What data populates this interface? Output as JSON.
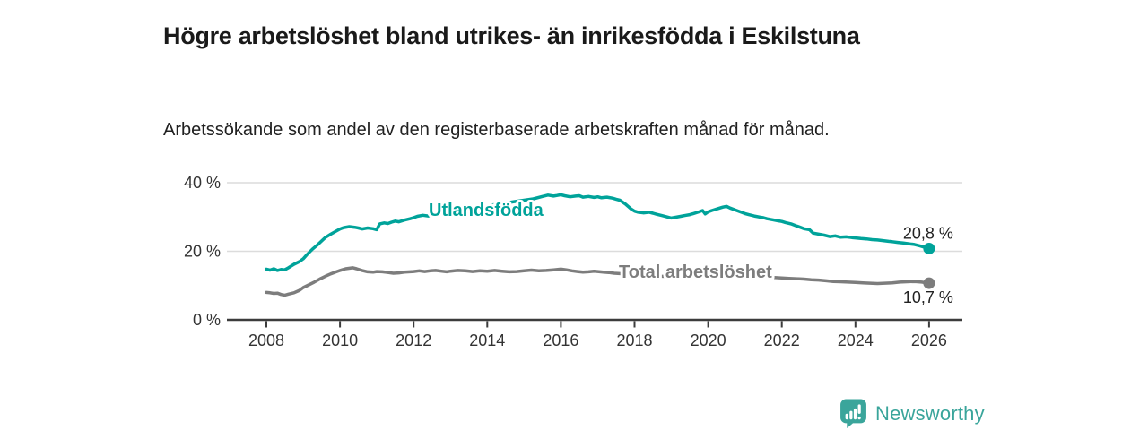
{
  "chart_data": {
    "type": "line",
    "title": "Högre arbetslöshet bland utrikes- än inrikesfödda i Eskilstuna",
    "subtitle": "Arbetssökande som andel av den registerbaserade arbetskraften månad för månad.",
    "unit": "%",
    "x_axis": {
      "range": [
        2008,
        2026
      ],
      "ticks": [
        2008,
        2010,
        2012,
        2014,
        2016,
        2018,
        2020,
        2022,
        2024,
        2026
      ],
      "grid": false
    },
    "y_axis": {
      "range": [
        0,
        40
      ],
      "ticks": [
        0,
        20,
        40
      ],
      "tick_labels": [
        "0 %",
        "20 %",
        "40 %"
      ],
      "grid": true
    },
    "legend_position": "inline-labels-on-lines",
    "series": [
      {
        "name": "Utlandsfödda",
        "color": "#00a39a",
        "end_value": 20.8,
        "end_label": "20,8 %",
        "points": [
          [
            2008.0,
            14.8
          ],
          [
            2008.1,
            14.5
          ],
          [
            2008.2,
            14.9
          ],
          [
            2008.3,
            14.4
          ],
          [
            2008.4,
            14.7
          ],
          [
            2008.5,
            14.6
          ],
          [
            2008.6,
            15.2
          ],
          [
            2008.75,
            16.2
          ],
          [
            2008.9,
            17.0
          ],
          [
            2009.0,
            17.8
          ],
          [
            2009.1,
            19.0
          ],
          [
            2009.25,
            20.6
          ],
          [
            2009.4,
            22.0
          ],
          [
            2009.5,
            23.0
          ],
          [
            2009.6,
            24.0
          ],
          [
            2009.75,
            25.0
          ],
          [
            2009.9,
            25.9
          ],
          [
            2010.0,
            26.5
          ],
          [
            2010.1,
            26.9
          ],
          [
            2010.25,
            27.2
          ],
          [
            2010.4,
            27.0
          ],
          [
            2010.5,
            26.8
          ],
          [
            2010.6,
            26.5
          ],
          [
            2010.75,
            26.8
          ],
          [
            2010.9,
            26.6
          ],
          [
            2011.0,
            26.3
          ],
          [
            2011.08,
            28.0
          ],
          [
            2011.2,
            28.3
          ],
          [
            2011.3,
            28.1
          ],
          [
            2011.4,
            28.5
          ],
          [
            2011.5,
            28.8
          ],
          [
            2011.6,
            28.6
          ],
          [
            2011.75,
            29.1
          ],
          [
            2011.9,
            29.5
          ],
          [
            2012.0,
            29.8
          ],
          [
            2012.1,
            30.2
          ],
          [
            2012.25,
            30.5
          ],
          [
            2012.4,
            30.3
          ],
          [
            2012.5,
            30.7
          ],
          [
            2012.75,
            31.1
          ],
          [
            2013.0,
            31.6
          ],
          [
            2013.25,
            32.1
          ],
          [
            2013.5,
            32.5
          ],
          [
            2013.75,
            32.9
          ],
          [
            2014.0,
            33.3
          ],
          [
            2014.25,
            33.7
          ],
          [
            2014.5,
            34.1
          ],
          [
            2014.75,
            34.5
          ],
          [
            2015.0,
            34.9
          ],
          [
            2015.25,
            35.3
          ],
          [
            2015.5,
            36.0
          ],
          [
            2015.65,
            36.4
          ],
          [
            2015.8,
            36.1
          ],
          [
            2015.9,
            36.3
          ],
          [
            2016.0,
            36.5
          ],
          [
            2016.1,
            36.2
          ],
          [
            2016.25,
            35.9
          ],
          [
            2016.4,
            36.1
          ],
          [
            2016.5,
            36.2
          ],
          [
            2016.6,
            35.8
          ],
          [
            2016.75,
            36.0
          ],
          [
            2016.9,
            35.7
          ],
          [
            2017.0,
            35.9
          ],
          [
            2017.1,
            35.6
          ],
          [
            2017.25,
            35.8
          ],
          [
            2017.4,
            35.5
          ],
          [
            2017.5,
            35.2
          ],
          [
            2017.6,
            34.9
          ],
          [
            2017.75,
            33.8
          ],
          [
            2017.9,
            32.4
          ],
          [
            2018.0,
            31.7
          ],
          [
            2018.1,
            31.4
          ],
          [
            2018.25,
            31.2
          ],
          [
            2018.4,
            31.4
          ],
          [
            2018.5,
            31.1
          ],
          [
            2018.6,
            30.8
          ],
          [
            2018.75,
            30.4
          ],
          [
            2018.9,
            30.0
          ],
          [
            2019.0,
            29.7
          ],
          [
            2019.1,
            29.9
          ],
          [
            2019.25,
            30.2
          ],
          [
            2019.4,
            30.5
          ],
          [
            2019.5,
            30.7
          ],
          [
            2019.6,
            31.0
          ],
          [
            2019.75,
            31.5
          ],
          [
            2019.85,
            31.9
          ],
          [
            2019.92,
            30.9
          ],
          [
            2020.0,
            31.5
          ],
          [
            2020.1,
            31.9
          ],
          [
            2020.25,
            32.4
          ],
          [
            2020.4,
            32.9
          ],
          [
            2020.5,
            33.1
          ],
          [
            2020.6,
            32.6
          ],
          [
            2020.75,
            32.0
          ],
          [
            2020.9,
            31.4
          ],
          [
            2021.0,
            31.0
          ],
          [
            2021.1,
            30.7
          ],
          [
            2021.25,
            30.3
          ],
          [
            2021.4,
            30.0
          ],
          [
            2021.5,
            29.8
          ],
          [
            2021.6,
            29.5
          ],
          [
            2021.75,
            29.2
          ],
          [
            2021.9,
            28.9
          ],
          [
            2022.0,
            28.7
          ],
          [
            2022.1,
            28.4
          ],
          [
            2022.25,
            28.0
          ],
          [
            2022.4,
            27.4
          ],
          [
            2022.5,
            27.0
          ],
          [
            2022.6,
            26.6
          ],
          [
            2022.75,
            26.3
          ],
          [
            2022.85,
            25.3
          ],
          [
            2023.0,
            25.0
          ],
          [
            2023.15,
            24.7
          ],
          [
            2023.3,
            24.3
          ],
          [
            2023.45,
            24.5
          ],
          [
            2023.6,
            24.1
          ],
          [
            2023.75,
            24.2
          ],
          [
            2023.9,
            24.0
          ],
          [
            2024.0,
            23.9
          ],
          [
            2024.15,
            23.7
          ],
          [
            2024.3,
            23.6
          ],
          [
            2024.45,
            23.4
          ],
          [
            2024.6,
            23.3
          ],
          [
            2024.75,
            23.1
          ],
          [
            2024.9,
            22.9
          ],
          [
            2025.0,
            22.8
          ],
          [
            2025.15,
            22.6
          ],
          [
            2025.3,
            22.4
          ],
          [
            2025.45,
            22.2
          ],
          [
            2025.6,
            22.0
          ],
          [
            2025.75,
            21.6
          ],
          [
            2025.9,
            21.1
          ],
          [
            2026.0,
            20.8
          ]
        ]
      },
      {
        "name": "Total arbetslöshet",
        "color": "#7d7d7d",
        "end_value": 10.7,
        "end_label": "10,7 %",
        "points": [
          [
            2008.0,
            8.0
          ],
          [
            2008.1,
            7.9
          ],
          [
            2008.2,
            7.7
          ],
          [
            2008.3,
            7.8
          ],
          [
            2008.4,
            7.4
          ],
          [
            2008.5,
            7.2
          ],
          [
            2008.6,
            7.5
          ],
          [
            2008.75,
            7.9
          ],
          [
            2008.9,
            8.6
          ],
          [
            2009.0,
            9.4
          ],
          [
            2009.15,
            10.2
          ],
          [
            2009.3,
            11.0
          ],
          [
            2009.45,
            11.9
          ],
          [
            2009.6,
            12.7
          ],
          [
            2009.75,
            13.4
          ],
          [
            2009.9,
            14.0
          ],
          [
            2010.0,
            14.4
          ],
          [
            2010.15,
            14.9
          ],
          [
            2010.35,
            15.2
          ],
          [
            2010.45,
            14.9
          ],
          [
            2010.6,
            14.4
          ],
          [
            2010.75,
            14.0
          ],
          [
            2010.9,
            13.9
          ],
          [
            2011.0,
            14.1
          ],
          [
            2011.15,
            14.0
          ],
          [
            2011.3,
            13.8
          ],
          [
            2011.45,
            13.6
          ],
          [
            2011.6,
            13.7
          ],
          [
            2011.75,
            13.9
          ],
          [
            2011.9,
            14.0
          ],
          [
            2012.0,
            14.1
          ],
          [
            2012.15,
            14.3
          ],
          [
            2012.3,
            14.1
          ],
          [
            2012.45,
            14.3
          ],
          [
            2012.6,
            14.4
          ],
          [
            2012.75,
            14.2
          ],
          [
            2012.9,
            14.0
          ],
          [
            2013.0,
            14.2
          ],
          [
            2013.2,
            14.4
          ],
          [
            2013.4,
            14.3
          ],
          [
            2013.6,
            14.1
          ],
          [
            2013.8,
            14.3
          ],
          [
            2014.0,
            14.2
          ],
          [
            2014.2,
            14.4
          ],
          [
            2014.4,
            14.2
          ],
          [
            2014.6,
            14.0
          ],
          [
            2014.8,
            14.1
          ],
          [
            2015.0,
            14.3
          ],
          [
            2015.2,
            14.5
          ],
          [
            2015.4,
            14.3
          ],
          [
            2015.6,
            14.4
          ],
          [
            2015.8,
            14.6
          ],
          [
            2016.0,
            14.8
          ],
          [
            2016.15,
            14.6
          ],
          [
            2016.3,
            14.3
          ],
          [
            2016.45,
            14.1
          ],
          [
            2016.6,
            13.9
          ],
          [
            2016.75,
            14.0
          ],
          [
            2016.9,
            14.2
          ],
          [
            2017.0,
            14.1
          ],
          [
            2017.15,
            13.9
          ],
          [
            2017.3,
            13.8
          ],
          [
            2017.45,
            13.6
          ],
          [
            2017.6,
            13.5
          ],
          [
            2017.8,
            13.3
          ],
          [
            2018.0,
            13.1
          ],
          [
            2018.25,
            12.9
          ],
          [
            2018.5,
            12.8
          ],
          [
            2018.75,
            12.7
          ],
          [
            2019.0,
            12.6
          ],
          [
            2019.25,
            12.6
          ],
          [
            2019.5,
            12.7
          ],
          [
            2019.75,
            12.8
          ],
          [
            2020.0,
            13.0
          ],
          [
            2020.2,
            13.4
          ],
          [
            2020.4,
            13.6
          ],
          [
            2020.6,
            13.5
          ],
          [
            2020.8,
            13.3
          ],
          [
            2021.0,
            13.0
          ],
          [
            2021.25,
            12.8
          ],
          [
            2021.5,
            12.6
          ],
          [
            2021.75,
            12.4
          ],
          [
            2022.0,
            12.2
          ],
          [
            2022.2,
            12.1
          ],
          [
            2022.4,
            12.0
          ],
          [
            2022.6,
            11.9
          ],
          [
            2022.8,
            11.7
          ],
          [
            2023.0,
            11.6
          ],
          [
            2023.2,
            11.4
          ],
          [
            2023.4,
            11.2
          ],
          [
            2023.6,
            11.1
          ],
          [
            2023.8,
            11.0
          ],
          [
            2024.0,
            10.9
          ],
          [
            2024.2,
            10.8
          ],
          [
            2024.4,
            10.7
          ],
          [
            2024.6,
            10.6
          ],
          [
            2024.8,
            10.7
          ],
          [
            2025.0,
            10.8
          ],
          [
            2025.2,
            11.0
          ],
          [
            2025.4,
            11.1
          ],
          [
            2025.6,
            11.2
          ],
          [
            2025.8,
            11.0
          ],
          [
            2026.0,
            10.7
          ]
        ]
      }
    ]
  },
  "theme": {
    "background": "#ffffff",
    "title_color": "#1a1a1a",
    "subtitle_color": "#212121",
    "axis_color": "#3c3c3c",
    "grid_color": "#dcdcdc",
    "tick_label_color": "#333333",
    "value_label_color": "#222222",
    "accent_teal": "#00a39a",
    "series_gray": "#7d7d7d",
    "logo_teal": "#3aa59b"
  },
  "footer": {
    "brand": "Newsworthy",
    "logo_icon": "speech-bubble-bar-chart-exclamation"
  }
}
